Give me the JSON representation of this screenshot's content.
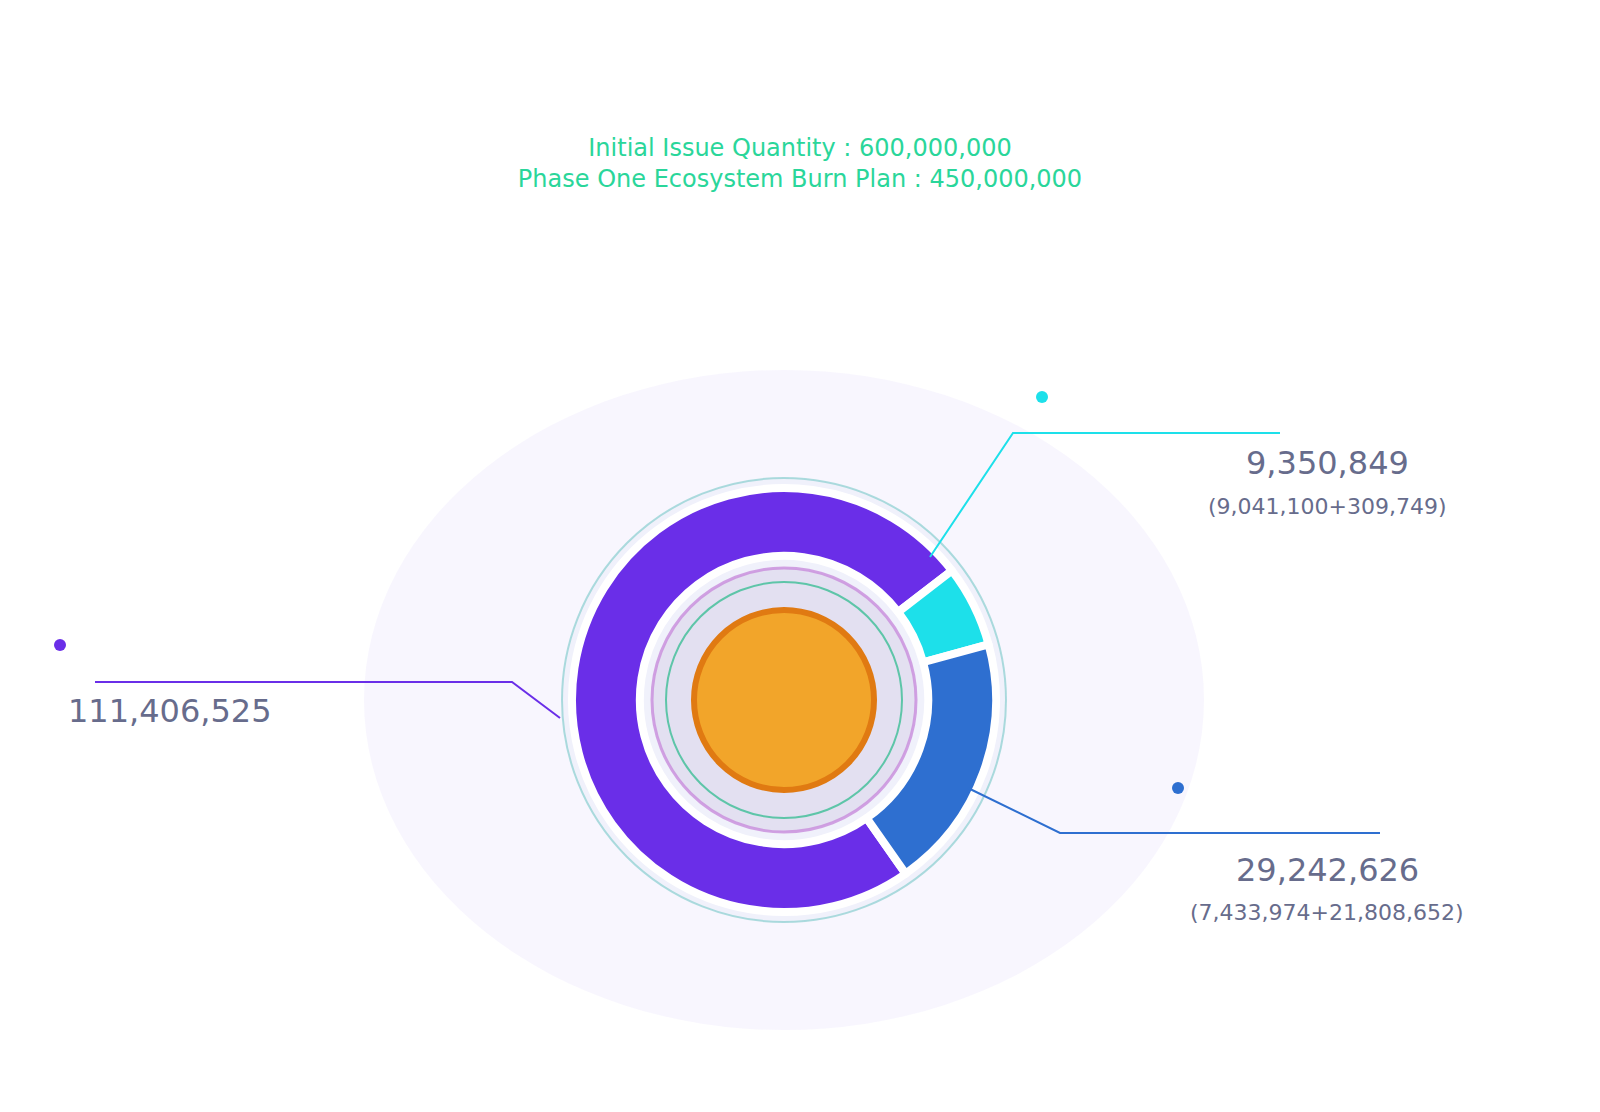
{
  "chart_data": {
    "type": "pie",
    "title": "Initial Issue Quantity : 600,000,000",
    "subtitle": "Phase One Ecosystem Burn Plan : 450,000,000",
    "values": [
      111406525,
      9350849,
      29242626
    ],
    "value_labels": [
      "111,406,525",
      "9,350,849",
      "29,242,626"
    ],
    "sublabels": [
      null,
      "(9,041,100+309,749)",
      "(7,433,974+21,808,652)"
    ],
    "colors": [
      "#6a2ee8",
      "#1de0ea",
      "#2e6fd0"
    ],
    "data_labels": true
  }
}
